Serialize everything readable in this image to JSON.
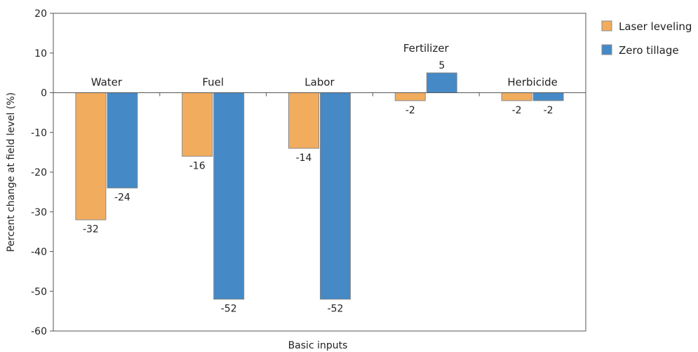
{
  "chart_data": {
    "type": "bar",
    "title": "",
    "xlabel": "Basic inputs",
    "ylabel": "Percent change at field level (%)",
    "ylim": [
      -60,
      20
    ],
    "yticks": [
      20,
      10,
      0,
      -10,
      -20,
      -30,
      -40,
      -50,
      -60
    ],
    "grid": false,
    "legend_position": "top-right",
    "categories": [
      "Water",
      "Fuel",
      "Labor",
      "Fertilizer",
      "Herbicide"
    ],
    "series": [
      {
        "name": "Laser leveling",
        "color": "#F2AC5E",
        "values": [
          -32,
          -16,
          -14,
          -2,
          -2
        ]
      },
      {
        "name": "Zero tillage",
        "color": "#4589C6",
        "values": [
          -24,
          -52,
          -52,
          5,
          -2
        ]
      }
    ],
    "data_labels": [
      [
        "-32",
        "-16",
        "-14",
        "-2",
        "-2"
      ],
      [
        "-24",
        "-52",
        "-52",
        "5",
        "-2"
      ]
    ]
  }
}
